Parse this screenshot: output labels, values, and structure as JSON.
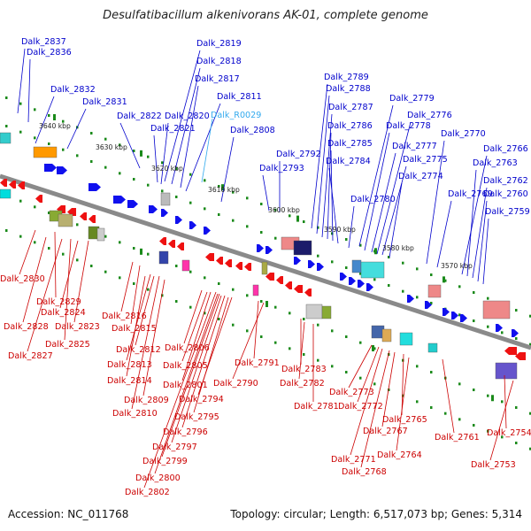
{
  "title": "Desulfatibacillum alkenivorans AK-01, complete genome",
  "footer": {
    "accession": "Accession: NC_011768",
    "summary": "Topology: circular; Length: 6,517,073 bp; Genes: 5,314"
  },
  "colors": {
    "forward_label": "#0000cc",
    "reverse_label": "#cc0000",
    "rna_label": "#33aaee",
    "backbone": "#8a8a8a",
    "tick": "#1a8a1a"
  },
  "scale_labels": [
    "3640 kbp",
    "3630 kbp",
    "3620 kbp",
    "3610 kbp",
    "3600 kbp",
    "3590 kbp",
    "3580 kbp",
    "3570 kbp"
  ],
  "forward_genes": [
    "Dalk_2837",
    "Dalk_2836",
    "Dalk_2832",
    "Dalk_2831",
    "Dalk_2822",
    "Dalk_2821",
    "Dalk_2820",
    "Dalk_2819",
    "Dalk_2818",
    "Dalk_2817",
    "Dalk_2811",
    "Dalk_2808",
    "Dalk_2793",
    "Dalk_2792",
    "Dalk_2789",
    "Dalk_2788",
    "Dalk_2787",
    "Dalk_2786",
    "Dalk_2785",
    "Dalk_2784",
    "Dalk_2780",
    "Dalk_2779",
    "Dalk_2778",
    "Dalk_2777",
    "Dalk_2776",
    "Dalk_2775",
    "Dalk_2774",
    "Dalk_2770",
    "Dalk_2769",
    "Dalk_2766",
    "Dalk_2763",
    "Dalk_2762",
    "Dalk_2760",
    "Dalk_2759"
  ],
  "rna_genes": [
    "Dalk_R0029"
  ],
  "reverse_genes": [
    "Dalk_2830",
    "Dalk_2829",
    "Dalk_2828",
    "Dalk_2827",
    "Dalk_2825",
    "Dalk_2824",
    "Dalk_2823",
    "Dalk_2816",
    "Dalk_2815",
    "Dalk_2814",
    "Dalk_2813",
    "Dalk_2812",
    "Dalk_2810",
    "Dalk_2809",
    "Dalk_2806",
    "Dalk_2805",
    "Dalk_2802",
    "Dalk_2801",
    "Dalk_2800",
    "Dalk_2799",
    "Dalk_2797",
    "Dalk_2796",
    "Dalk_2795",
    "Dalk_2794",
    "Dalk_2791",
    "Dalk_2790",
    "Dalk_2783",
    "Dalk_2782",
    "Dalk_2781",
    "Dalk_2773",
    "Dalk_2772",
    "Dalk_2771",
    "Dalk_2768",
    "Dalk_2767",
    "Dalk_2765",
    "Dalk_2764",
    "Dalk_2761",
    "Dalk_2754",
    "Dalk_2753"
  ]
}
